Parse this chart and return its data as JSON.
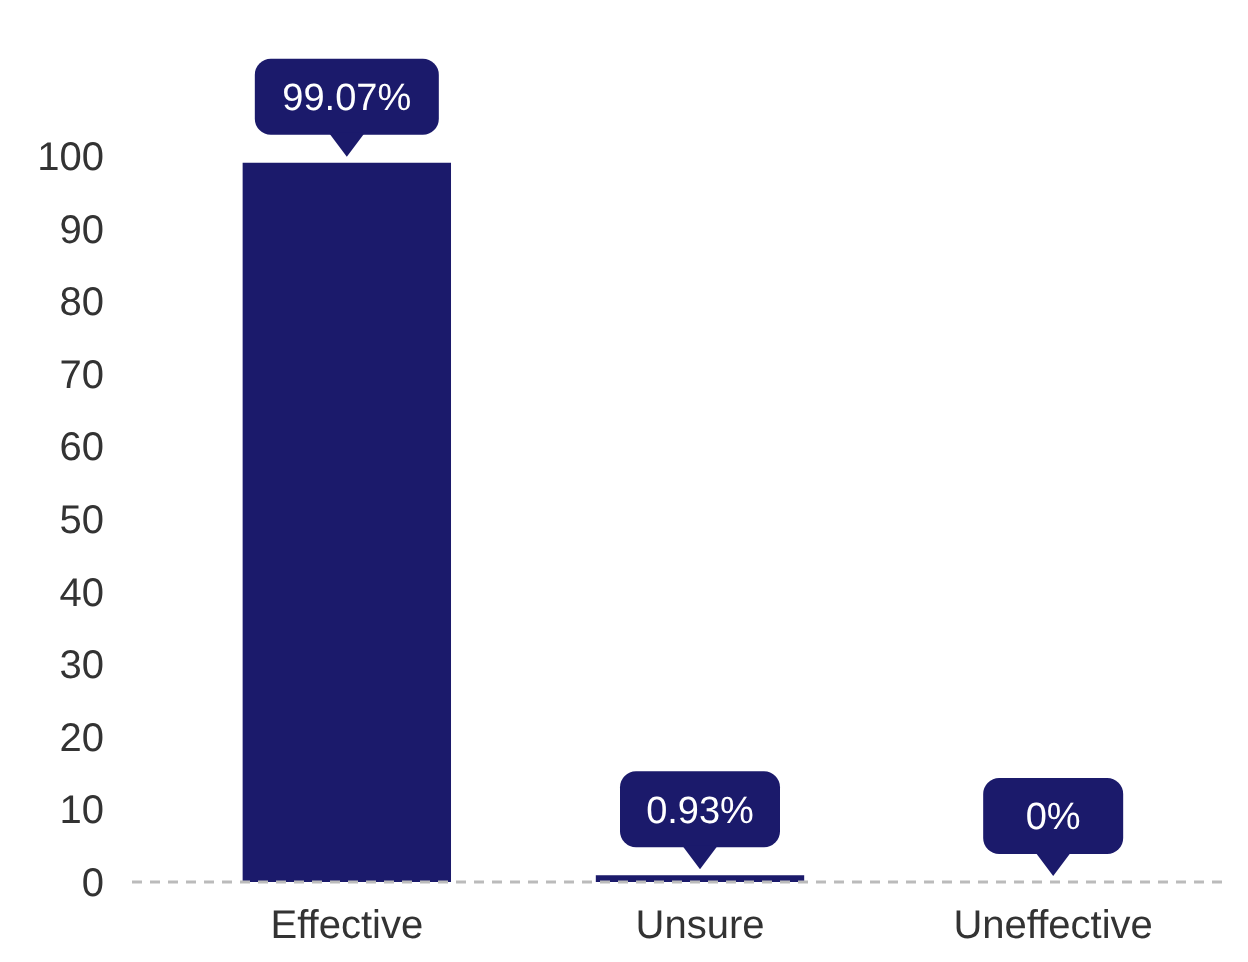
{
  "chart_data": {
    "type": "bar",
    "categories": [
      "Effective",
      "Unsure",
      "Uneffective"
    ],
    "values": [
      99.07,
      0.93,
      0
    ],
    "value_labels": [
      "99.07%",
      "0.93%",
      "0%"
    ],
    "color": "#1b1a6b",
    "ylim": [
      0,
      100
    ],
    "yticks": [
      0,
      10,
      20,
      30,
      40,
      50,
      60,
      70,
      80,
      90,
      100
    ],
    "grid": false
  }
}
